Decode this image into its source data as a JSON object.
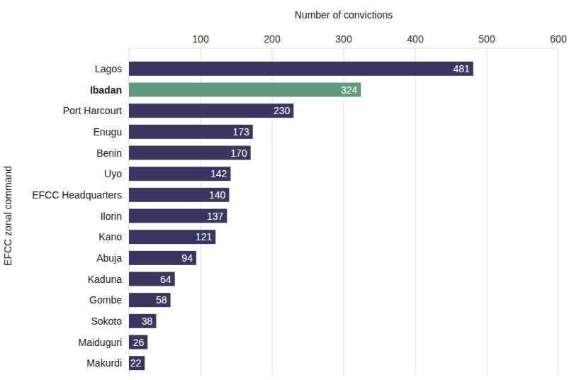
{
  "chart_data": {
    "type": "bar",
    "orientation": "horizontal",
    "x_label": "Number of convictions",
    "y_label": "EFCC zonal command",
    "categories": [
      "Lagos",
      "Ibadan",
      "Port Harcourt",
      "Enugu",
      "Benin",
      "Uyo",
      "EFCC Headquarters",
      "Ilorin",
      "Kano",
      "Abuja",
      "Kaduna",
      "Gombe",
      "Sokoto",
      "Maiduguri",
      "Makurdi"
    ],
    "values": [
      481,
      324,
      230,
      173,
      170,
      142,
      140,
      137,
      121,
      94,
      64,
      58,
      38,
      26,
      22
    ],
    "colors": [
      "#3b3660",
      "#5f9a7a",
      "#3b3660",
      "#3b3660",
      "#3b3660",
      "#3b3660",
      "#3b3660",
      "#3b3660",
      "#3b3660",
      "#3b3660",
      "#3b3660",
      "#3b3660",
      "#3b3660",
      "#3b3660",
      "#3b3660"
    ],
    "xlim": [
      0,
      600
    ],
    "xticks": [
      100,
      200,
      300,
      400,
      500,
      600
    ],
    "grid": true,
    "data_labels": true
  }
}
